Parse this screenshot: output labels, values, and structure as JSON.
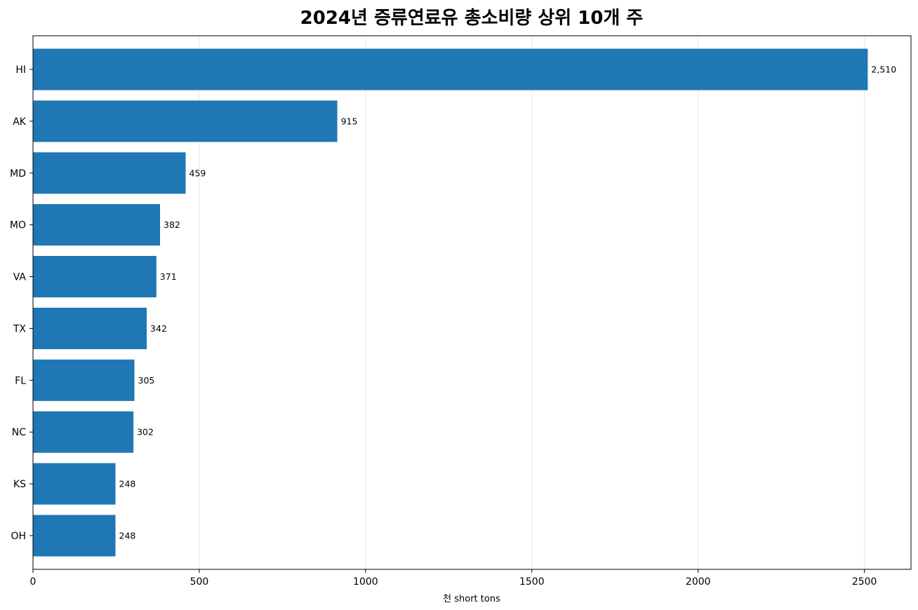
{
  "chart_data": {
    "type": "bar",
    "orientation": "horizontal",
    "title": "2024년 증류연료유 총소비량 상위 10개 주",
    "xlabel": "천 short tons",
    "ylabel": "",
    "xlim": [
      0,
      2640
    ],
    "xticks": [
      0,
      500,
      1000,
      1500,
      2000,
      2500
    ],
    "grid": "vertical",
    "bar_color": "#1f77b4",
    "categories": [
      "HI",
      "AK",
      "MD",
      "MO",
      "VA",
      "TX",
      "FL",
      "NC",
      "KS",
      "OH"
    ],
    "values": [
      2510,
      915,
      459,
      382,
      371,
      342,
      305,
      302,
      248,
      248
    ],
    "data_labels": [
      "2,510",
      "915",
      "459",
      "382",
      "371",
      "342",
      "305",
      "302",
      "248",
      "248"
    ]
  }
}
